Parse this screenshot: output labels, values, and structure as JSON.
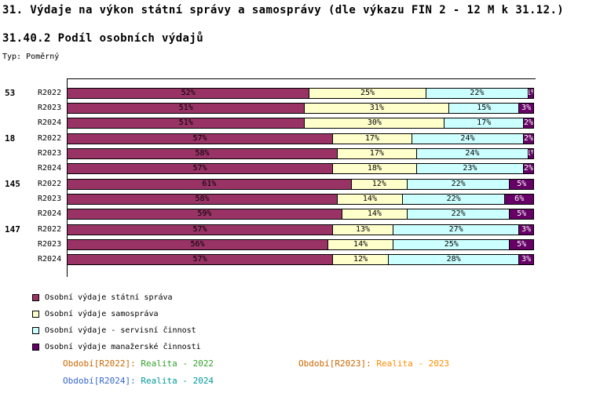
{
  "header": {
    "title": "31. Výdaje na výkon státní správy a samosprávy (dle výkazu FIN 2 - 12 M k 31.12.)",
    "subtitle": "31.40.2 Podíl osobních výdajů",
    "type_label": "Typ: Poměrný"
  },
  "chart_data": {
    "type": "bar",
    "orientation": "horizontal",
    "stacked": true,
    "unit": "%",
    "xlim": [
      0,
      100
    ],
    "grid": false,
    "legend_position": "bottom-left",
    "series_names": [
      "Osobní výdaje státní správa",
      "Osobní výdaje samospráva",
      "Osobní výdaje - servisní činnost",
      "Osobní výdaje manažerské činnosti"
    ],
    "series_colors": [
      "#993366",
      "#FFFFCC",
      "#CCFFFF",
      "#660066"
    ],
    "groups": [
      {
        "label": "53",
        "rows": [
          {
            "label": "R2022",
            "values": [
              52,
              25,
              22,
              1
            ]
          },
          {
            "label": "R2023",
            "values": [
              51,
              31,
              15,
              3
            ]
          },
          {
            "label": "R2024",
            "values": [
              51,
              30,
              17,
              2
            ]
          }
        ]
      },
      {
        "label": "18",
        "rows": [
          {
            "label": "R2022",
            "values": [
              57,
              17,
              24,
              2
            ]
          },
          {
            "label": "R2023",
            "values": [
              58,
              17,
              24,
              1
            ]
          },
          {
            "label": "R2024",
            "values": [
              57,
              18,
              23,
              2
            ]
          }
        ]
      },
      {
        "label": "145",
        "rows": [
          {
            "label": "R2022",
            "values": [
              61,
              12,
              22,
              5
            ]
          },
          {
            "label": "R2023",
            "values": [
              58,
              14,
              22,
              6
            ]
          },
          {
            "label": "R2024",
            "values": [
              59,
              14,
              22,
              5
            ]
          }
        ]
      },
      {
        "label": "147",
        "rows": [
          {
            "label": "R2022",
            "values": [
              57,
              13,
              27,
              3
            ]
          },
          {
            "label": "R2023",
            "values": [
              56,
              14,
              25,
              5
            ]
          },
          {
            "label": "R2024",
            "values": [
              57,
              12,
              28,
              3
            ]
          }
        ]
      }
    ]
  },
  "legend": {
    "items": [
      {
        "label": "Osobní výdaje státní správa",
        "color": "#993366"
      },
      {
        "label": "Osobní výdaje samospráva",
        "color": "#FFFFCC"
      },
      {
        "label": "Osobní výdaje - servisní činnost",
        "color": "#CCFFFF"
      },
      {
        "label": "Osobní výdaje manažerské činnosti",
        "color": "#660066"
      }
    ]
  },
  "footer": {
    "periods": [
      {
        "label": "Období[R2022]:",
        "value": "Realita - 2022",
        "label_color": "#CC6600",
        "value_color": "#33A02C"
      },
      {
        "label": "Období[R2023]:",
        "value": "Realita - 2023",
        "label_color": "#CC6600",
        "value_color": "#FF8C00"
      },
      {
        "label": "Období[R2024]:",
        "value": "Realita - 2024",
        "label_color": "#3366CC",
        "value_color": "#009999"
      }
    ]
  }
}
